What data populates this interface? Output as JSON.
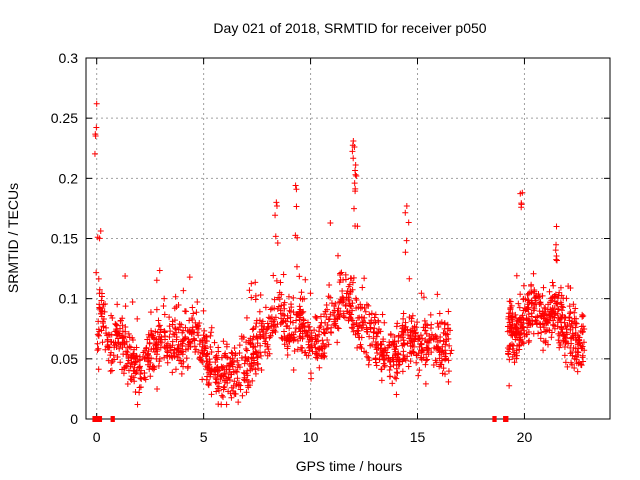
{
  "chart_data": {
    "type": "scatter",
    "title": "Day 021 of 2018, SRMTID for receiver p050",
    "xlabel": "GPS time / hours",
    "ylabel": "SRMTID / TECUs",
    "xlim": [
      -0.5,
      24
    ],
    "ylim": [
      0,
      0.3
    ],
    "x_ticks": [
      0,
      5,
      10,
      15,
      20
    ],
    "y_ticks": [
      0,
      0.05,
      0.1,
      0.15,
      0.2,
      0.25,
      0.3
    ],
    "x_tick_labels": [
      "0",
      "5",
      "10",
      "15",
      "20"
    ],
    "y_tick_labels": [
      "0",
      "0.05",
      "0.1",
      "0.15",
      "0.2",
      "0.25",
      "0.3"
    ],
    "grid": true,
    "marker": "+",
    "color": "#ff0000",
    "series": [
      {
        "name": "SRMTID",
        "segments": [
          {
            "x_start": 0.0,
            "x_end": 16.6,
            "samples": 1400
          },
          {
            "x_start": 19.2,
            "x_end": 22.8,
            "samples": 420
          }
        ],
        "peaks": [
          {
            "x": 0.0,
            "y": 0.262
          },
          {
            "x": 0.05,
            "y": 0.151
          },
          {
            "x": 8.4,
            "y": 0.18
          },
          {
            "x": 9.3,
            "y": 0.194
          },
          {
            "x": 12.0,
            "y": 0.231
          },
          {
            "x": 12.05,
            "y": 0.226
          },
          {
            "x": 12.1,
            "y": 0.203
          },
          {
            "x": 14.5,
            "y": 0.177
          },
          {
            "x": 19.9,
            "y": 0.188
          },
          {
            "x": 21.5,
            "y": 0.16
          }
        ],
        "points": [
          [
            0.1,
            0.095
          ],
          [
            0.3,
            0.08
          ],
          [
            0.6,
            0.06
          ],
          [
            1.0,
            0.07
          ],
          [
            1.5,
            0.048
          ],
          [
            2.0,
            0.04
          ],
          [
            2.5,
            0.055
          ],
          [
            3.0,
            0.07
          ],
          [
            3.5,
            0.065
          ],
          [
            4.0,
            0.06
          ],
          [
            4.5,
            0.075
          ],
          [
            5.0,
            0.055
          ],
          [
            5.5,
            0.045
          ],
          [
            6.0,
            0.04
          ],
          [
            6.5,
            0.035
          ],
          [
            7.0,
            0.045
          ],
          [
            7.5,
            0.06
          ],
          [
            8.0,
            0.07
          ],
          [
            8.5,
            0.095
          ],
          [
            9.0,
            0.07
          ],
          [
            9.5,
            0.085
          ],
          [
            10.0,
            0.06
          ],
          [
            10.5,
            0.07
          ],
          [
            11.0,
            0.08
          ],
          [
            11.5,
            0.1
          ],
          [
            12.0,
            0.09
          ],
          [
            12.5,
            0.075
          ],
          [
            13.0,
            0.065
          ],
          [
            13.5,
            0.06
          ],
          [
            14.0,
            0.05
          ],
          [
            14.5,
            0.07
          ],
          [
            15.0,
            0.06
          ],
          [
            15.5,
            0.065
          ],
          [
            16.0,
            0.06
          ],
          [
            16.5,
            0.06
          ],
          [
            19.3,
            0.08
          ],
          [
            19.6,
            0.07
          ],
          [
            20.0,
            0.085
          ],
          [
            20.5,
            0.095
          ],
          [
            21.0,
            0.08
          ],
          [
            21.5,
            0.09
          ],
          [
            22.0,
            0.07
          ],
          [
            22.5,
            0.06
          ],
          [
            22.8,
            0.065
          ]
        ]
      }
    ],
    "data_gap_markers": [
      {
        "x_start": -0.2,
        "x_end": 0.25,
        "y": 0
      },
      {
        "x_start": 0.65,
        "x_end": 0.85,
        "y": 0
      },
      {
        "x_start": 18.5,
        "x_end": 18.7,
        "y": 0
      },
      {
        "x_start": 19.0,
        "x_end": 19.25,
        "y": 0
      }
    ]
  }
}
